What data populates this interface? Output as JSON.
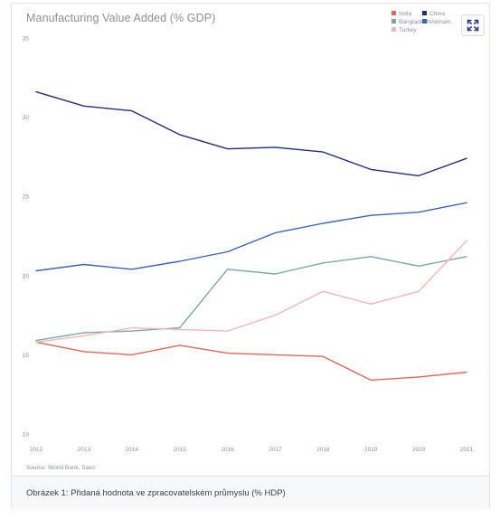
{
  "chart_data": {
    "type": "line",
    "title": "Manufacturing Value Added (% GDP)",
    "source": "Source: World Bank, Saxo",
    "x": [
      "2012",
      "2013",
      "2014",
      "2015",
      "2016",
      "2017",
      "2018",
      "2019",
      "2020",
      "2021"
    ],
    "ylim": [
      10,
      35
    ],
    "yticks": [
      10,
      15,
      20,
      25,
      30,
      35
    ],
    "grid": false,
    "legend_position": "top-right",
    "series": [
      {
        "name": "India",
        "color": "#e0675a",
        "values": [
          15.8,
          15.2,
          15.0,
          15.6,
          15.1,
          15.0,
          14.9,
          13.4,
          13.6,
          13.9
        ]
      },
      {
        "name": "China",
        "color": "#1f2f75",
        "values": [
          31.6,
          30.7,
          30.4,
          28.9,
          28.0,
          28.1,
          27.8,
          26.7,
          26.3,
          27.4
        ]
      },
      {
        "name": "Bangladesh",
        "color": "#7aa7a6",
        "values": [
          15.9,
          16.4,
          16.5,
          16.7,
          20.4,
          20.1,
          20.8,
          21.2,
          20.6,
          21.2
        ]
      },
      {
        "name": "Vietnam",
        "color": "#3b63b3",
        "values": [
          20.3,
          20.7,
          20.4,
          20.9,
          21.5,
          22.7,
          23.3,
          23.8,
          24.0,
          24.6
        ]
      },
      {
        "name": "Turkey",
        "color": "#f2b6b6",
        "values": [
          15.8,
          16.2,
          16.7,
          16.6,
          16.5,
          17.5,
          19.0,
          18.2,
          19.0,
          22.2
        ]
      }
    ]
  },
  "caption": "Obrázek 1: Přidaná hodnota ve zpracovatelském průmyslu (% HDP)"
}
